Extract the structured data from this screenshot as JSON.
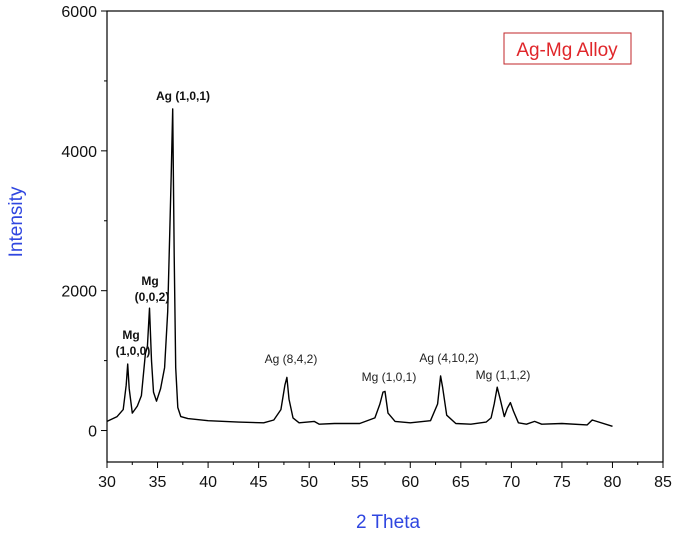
{
  "chart_data": {
    "type": "line",
    "title": "",
    "xlabel": "2 Theta",
    "ylabel": "Intensity",
    "xlim": [
      30,
      85
    ],
    "ylim": [
      -450,
      6000
    ],
    "x_ticks": [
      "30",
      "35",
      "40",
      "45",
      "50",
      "55",
      "60",
      "65",
      "70",
      "75",
      "80",
      "85"
    ],
    "y_ticks": [
      "0",
      "2000",
      "4000",
      "6000"
    ],
    "grid": false,
    "legend_placement": "top-right",
    "series": [
      {
        "name": "Ag-Mg Alloy",
        "color": "#000000",
        "x": [
          30.0,
          31.0,
          31.6,
          31.9,
          32.05,
          32.2,
          32.5,
          33.0,
          33.4,
          33.8,
          34.0,
          34.2,
          34.4,
          34.6,
          34.9,
          35.3,
          35.7,
          36.0,
          36.2,
          36.35,
          36.5,
          36.65,
          36.8,
          37.0,
          37.3,
          38.0,
          40.0,
          43.0,
          45.5,
          46.5,
          47.2,
          47.6,
          47.8,
          48.0,
          48.4,
          49.0,
          50.5,
          51.0,
          52.5,
          55.0,
          56.5,
          57.0,
          57.3,
          57.5,
          57.8,
          58.5,
          60.0,
          62.0,
          62.7,
          63.0,
          63.2,
          63.6,
          64.5,
          66.0,
          67.5,
          68.0,
          68.3,
          68.6,
          68.9,
          69.3,
          69.6,
          69.9,
          70.2,
          70.7,
          71.5,
          72.3,
          73.0,
          75.0,
          77.5,
          78.0,
          80.0
        ],
        "y": [
          130,
          200,
          300,
          650,
          950,
          600,
          250,
          350,
          500,
          1100,
          1200,
          1750,
          1000,
          550,
          420,
          600,
          900,
          1700,
          2800,
          3650,
          4600,
          2500,
          900,
          330,
          200,
          170,
          140,
          120,
          110,
          150,
          300,
          650,
          760,
          450,
          180,
          110,
          130,
          90,
          100,
          100,
          180,
          380,
          550,
          560,
          250,
          130,
          110,
          140,
          380,
          780,
          620,
          220,
          100,
          90,
          120,
          180,
          380,
          620,
          450,
          200,
          320,
          400,
          280,
          110,
          90,
          130,
          90,
          100,
          80,
          150,
          60
        ]
      }
    ],
    "annotations": [
      {
        "text": "Ag (1,0,1)",
        "x": 36.5,
        "y": 4600
      },
      {
        "text": "Mg",
        "x": 34.4,
        "y": 1750
      },
      {
        "text": "(0,0,2)",
        "x": 34.4,
        "y": 1750
      },
      {
        "text": "Mg",
        "x": 32.05,
        "y": 950
      },
      {
        "text": "(1,0,0)",
        "x": 32.05,
        "y": 950
      },
      {
        "text": "Ag (8,4,2)",
        "x": 47.8,
        "y": 760
      },
      {
        "text": "Mg (1,0,1)",
        "x": 57.4,
        "y": 560
      },
      {
        "text": "Ag (4,10,2)",
        "x": 63.0,
        "y": 780
      },
      {
        "text": "Mg (1,1,2)",
        "x": 68.6,
        "y": 620
      }
    ]
  },
  "colors": {
    "axis": "#000000",
    "axis_title": "#2f46e0",
    "legend_text": "#e0262a",
    "legend_border": "#c0262a"
  }
}
